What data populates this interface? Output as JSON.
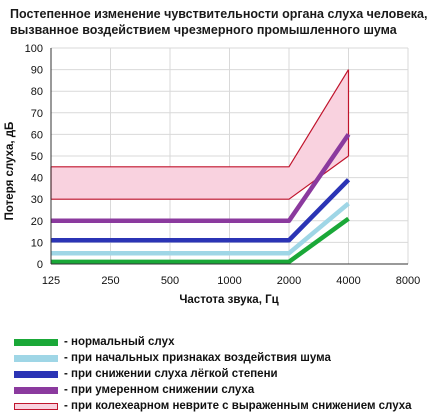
{
  "title": {
    "line1": "Постепенное изменение чувствительности органа слуха человека,",
    "line2": "вызванное воздействием чрезмерного промышленного шума"
  },
  "colors": {
    "normal": "#1aa838",
    "initial": "#9fd6e6",
    "mild": "#2b34b5",
    "moderate": "#8b3a9e",
    "cochlear_fill": "#f9d2df",
    "cochlear_line": "#c0142c",
    "grid": "#d9d9d9"
  },
  "chart_data": {
    "type": "line",
    "title": "Постепенное изменение чувствительности органа слуха человека, вызванное воздействием чрезмерного промышленного шума",
    "xlabel": "Частота звука, Гц",
    "ylabel": "Потеря слуха, дБ",
    "x_ticks": [
      "125",
      "250",
      "500",
      "1000",
      "2000",
      "4000",
      "8000"
    ],
    "y_ticks": [
      0,
      10,
      20,
      30,
      40,
      50,
      60,
      70,
      80,
      90,
      100
    ],
    "ylim": [
      0,
      100
    ],
    "grid": true,
    "legend_position": "bottom",
    "x": [
      "125",
      "250",
      "500",
      "1000",
      "2000",
      "4000"
    ],
    "series": [
      {
        "name": "- нормальный слух",
        "values": [
          1,
          1,
          1,
          1,
          1,
          21
        ],
        "style": "band",
        "color_key": "normal"
      },
      {
        "name": "- при начальных признаках воздействия шума",
        "values": [
          5,
          5,
          5,
          5,
          5,
          28
        ],
        "style": "band",
        "color_key": "initial"
      },
      {
        "name": "- при снижении слуха лёгкой степени",
        "values": [
          11,
          11,
          11,
          11,
          11,
          39
        ],
        "style": "band",
        "color_key": "mild"
      },
      {
        "name": "- при умеренном снижении слуха",
        "values": [
          20,
          20,
          20,
          20,
          20,
          60
        ],
        "style": "band",
        "color_key": "moderate"
      },
      {
        "name": "- при колехеарном неврите с выраженным снижением слуха",
        "style": "range",
        "lower": [
          30,
          30,
          30,
          30,
          30,
          50
        ],
        "upper": [
          45,
          45,
          45,
          45,
          45,
          90
        ],
        "color_key": "cochlear"
      }
    ]
  }
}
